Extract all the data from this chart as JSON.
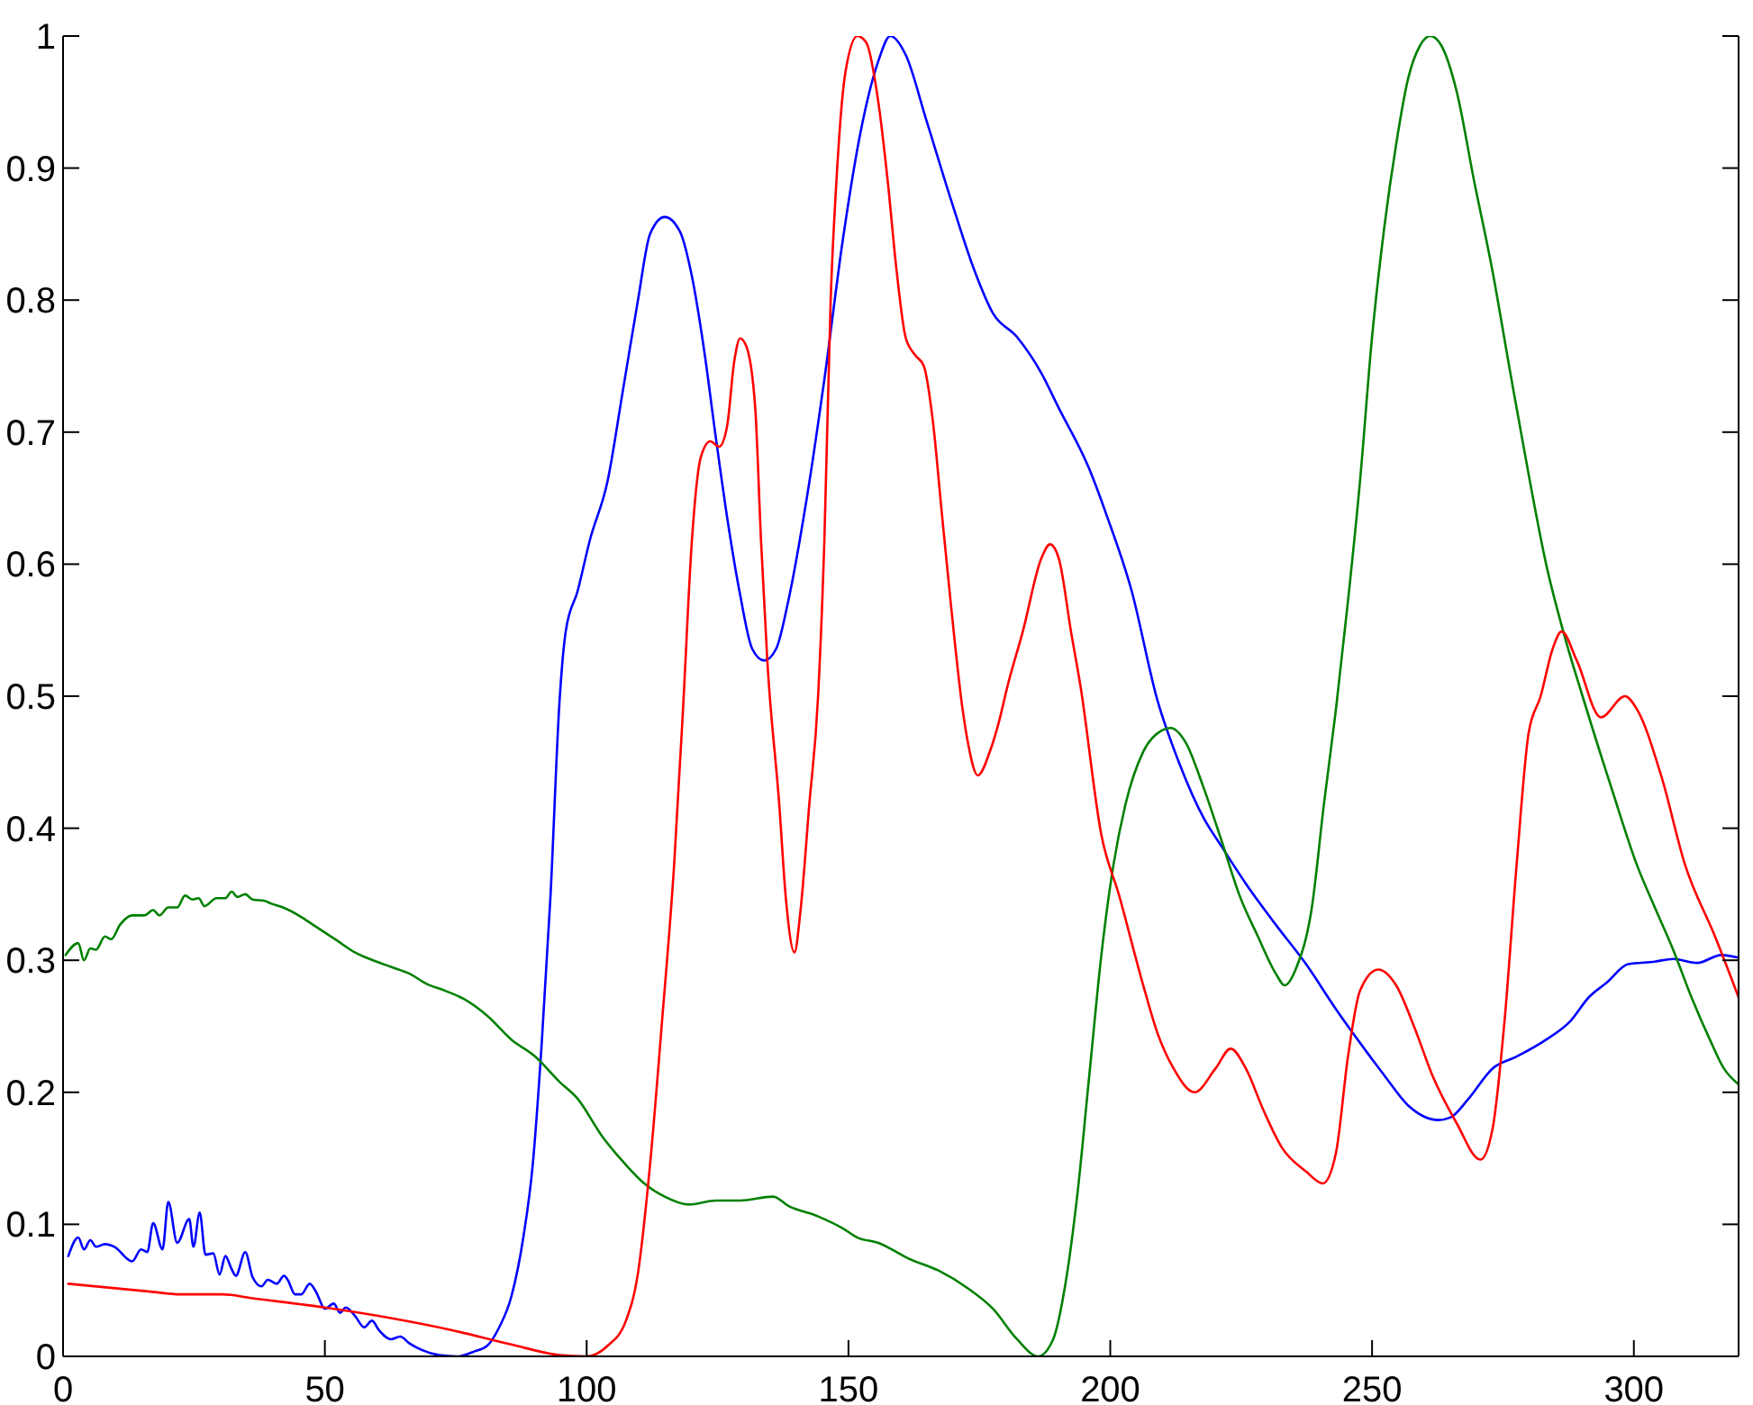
{
  "chart_data": {
    "type": "line",
    "xlim": [
      0,
      320
    ],
    "ylim": [
      0,
      1
    ],
    "xticks": [
      0,
      50,
      100,
      150,
      200,
      250,
      300
    ],
    "yticks": [
      0,
      0.1,
      0.2,
      0.3,
      0.4,
      0.5,
      0.6,
      0.7,
      0.8,
      0.9,
      1
    ],
    "series": [
      {
        "color": "#0000ff",
        "x": [
          1,
          2.9,
          4,
          5.2,
          6.3,
          8,
          9.8,
          13.2,
          14.9,
          16.1,
          17.2,
          19,
          20.1,
          21.8,
          24.1,
          24.9,
          26.1,
          27.2,
          28.7,
          29.9,
          31,
          32.2,
          33,
          34.8,
          36.2,
          37.9,
          39.1,
          40.8,
          42.2,
          42.9,
          44.3,
          45.5,
          47.1,
          48.3,
          50,
          51.7,
          52.9,
          54,
          55.7,
          57.5,
          59,
          60.3,
          62.6,
          64.4,
          66.1,
          68.4,
          71.8,
          75.3,
          78.7,
          81,
          83.3,
          85.6,
          87.9,
          89.7,
          91.4,
          93.1,
          94.8,
          96,
          98.3,
          100.6,
          104,
          106.9,
          109.8,
          112.1,
          114.9,
          117.8,
          120.1,
          122.4,
          124.7,
          127,
          129.3,
          131.6,
          133.9,
          136.2,
          138.5,
          142,
          145.4,
          148.9,
          152.3,
          155.7,
          158,
          160.9,
          164.9,
          169.5,
          174.1,
          177.6,
          182.2,
          186.8,
          190.2,
          196,
          199.4,
          204,
          209,
          213.2,
          217.8,
          221.3,
          225.9,
          231.6,
          237.4,
          243.1,
          248.9,
          252.3,
          256.9,
          262.7,
          265,
          268.4,
          273,
          277.6,
          283.3,
          287.9,
          291.4,
          294.8,
          298.9,
          304,
          307.5,
          312.1,
          316.7,
          320
        ],
        "values": [
          0.076,
          0.09,
          0.081,
          0.088,
          0.083,
          0.085,
          0.083,
          0.072,
          0.081,
          0.079,
          0.101,
          0.081,
          0.117,
          0.086,
          0.104,
          0.083,
          0.109,
          0.077,
          0.078,
          0.062,
          0.076,
          0.066,
          0.061,
          0.079,
          0.06,
          0.053,
          0.058,
          0.055,
          0.061,
          0.058,
          0.047,
          0.047,
          0.055,
          0.049,
          0.036,
          0.04,
          0.033,
          0.037,
          0.031,
          0.022,
          0.027,
          0.02,
          0.013,
          0.015,
          0.01,
          0.005,
          0.001,
          0,
          0.004,
          0.008,
          0.022,
          0.045,
          0.09,
          0.145,
          0.236,
          0.349,
          0.495,
          0.549,
          0.58,
          0.618,
          0.663,
          0.731,
          0.8,
          0.85,
          0.863,
          0.852,
          0.818,
          0.763,
          0.695,
          0.631,
          0.577,
          0.536,
          0.527,
          0.536,
          0.572,
          0.649,
          0.74,
          0.845,
          0.927,
          0.981,
          1,
          0.986,
          0.936,
          0.877,
          0.822,
          0.79,
          0.772,
          0.745,
          0.718,
          0.672,
          0.636,
          0.581,
          0.497,
          0.449,
          0.408,
          0.386,
          0.358,
          0.327,
          0.297,
          0.263,
          0.231,
          0.213,
          0.19,
          0.179,
          0.181,
          0.195,
          0.218,
          0.227,
          0.24,
          0.254,
          0.272,
          0.283,
          0.297,
          0.299,
          0.301,
          0.298,
          0.304,
          0.302
        ]
      },
      {
        "color": "#008000",
        "x": [
          0.5,
          2.9,
          4,
          5.2,
          6.3,
          8,
          9.2,
          10.9,
          13.2,
          15.5,
          17.2,
          18.4,
          20.1,
          21.8,
          23.3,
          24.7,
          25.9,
          27,
          29.3,
          31,
          32.2,
          33.3,
          34.8,
          36.2,
          38.5,
          39.7,
          42,
          45.4,
          47.7,
          50,
          52.3,
          55.7,
          59.2,
          62.6,
          66.1,
          69.5,
          72.9,
          76.4,
          81,
          85.6,
          90.2,
          94.8,
          98.3,
          102.9,
          107.5,
          111,
          114.9,
          119.5,
          124.7,
          129.3,
          135.6,
          138.5,
          144.2,
          148.9,
          151.7,
          155.7,
          161.5,
          167.2,
          173,
          177.6,
          182.2,
          186.2,
          189.1,
          191.4,
          193.7,
          196,
          198.3,
          200.6,
          202.9,
          206.3,
          209.8,
          211.5,
          214.4,
          217.8,
          221.3,
          224.7,
          228.2,
          231.6,
          233.3,
          235.6,
          238.5,
          240.8,
          243.1,
          245.4,
          247.7,
          250,
          252.3,
          254.6,
          256.9,
          259.2,
          261.1,
          263.2,
          266.1,
          269.5,
          273,
          276.4,
          279.9,
          283.3,
          286.8,
          290.2,
          296,
          300.6,
          304,
          307.5,
          311,
          314.5,
          317.2,
          320
        ],
        "values": [
          0.304,
          0.313,
          0.3,
          0.309,
          0.308,
          0.318,
          0.316,
          0.327,
          0.334,
          0.334,
          0.338,
          0.334,
          0.34,
          0.34,
          0.349,
          0.346,
          0.347,
          0.341,
          0.347,
          0.347,
          0.352,
          0.348,
          0.35,
          0.346,
          0.345,
          0.343,
          0.34,
          0.333,
          0.327,
          0.321,
          0.315,
          0.306,
          0.3,
          0.295,
          0.29,
          0.282,
          0.277,
          0.271,
          0.258,
          0.24,
          0.227,
          0.208,
          0.195,
          0.167,
          0.145,
          0.131,
          0.121,
          0.115,
          0.118,
          0.118,
          0.121,
          0.114,
          0.106,
          0.097,
          0.09,
          0.086,
          0.074,
          0.065,
          0.051,
          0.036,
          0.013,
          0,
          0.013,
          0.054,
          0.122,
          0.213,
          0.304,
          0.372,
          0.418,
          0.458,
          0.474,
          0.476,
          0.465,
          0.431,
          0.39,
          0.349,
          0.318,
          0.29,
          0.281,
          0.295,
          0.34,
          0.418,
          0.49,
          0.572,
          0.663,
          0.772,
          0.854,
          0.918,
          0.968,
          0.993,
          1,
          0.993,
          0.959,
          0.89,
          0.822,
          0.745,
          0.668,
          0.599,
          0.545,
          0.5,
          0.427,
          0.372,
          0.34,
          0.308,
          0.272,
          0.24,
          0.218,
          0.206
        ]
      },
      {
        "color": "#ff0000",
        "x": [
          1,
          16.7,
          22.4,
          30.4,
          36.2,
          50,
          62.6,
          74.1,
          85.6,
          94.8,
          100,
          104,
          107.5,
          109.8,
          112.1,
          114.4,
          116.7,
          118.4,
          120.1,
          121.8,
          123.6,
          125.3,
          126.8,
          128.2,
          129.3,
          130.5,
          132.2,
          133.3,
          134.5,
          136.8,
          138,
          139.7,
          140.8,
          142.5,
          144.2,
          145.4,
          146.6,
          147.7,
          149.4,
          151.7,
          153.4,
          155.7,
          157.5,
          159.2,
          160.9,
          162.6,
          164.4,
          166.1,
          167.8,
          169.5,
          171.8,
          172.9,
          174.7,
          177,
          178.7,
          180.4,
          183.3,
          186.8,
          188.5,
          190.2,
          192.5,
          194.3,
          198.3,
          201.7,
          206.3,
          209,
          212.1,
          216.1,
          220.1,
          223,
          225.9,
          229.3,
          232.8,
          237.4,
          240.6,
          243.1,
          245.4,
          247.7,
          251.2,
          254.6,
          258.1,
          261.5,
          266.1,
          270.7,
          273,
          275.3,
          277.6,
          279.9,
          282.2,
          284.5,
          286.2,
          289.1,
          293.7,
          298.3,
          300.6,
          305.2,
          309.8,
          315.5,
          320
        ],
        "values": [
          0.055,
          0.049,
          0.047,
          0.047,
          0.044,
          0.037,
          0.029,
          0.02,
          0.009,
          0.001,
          0,
          0.008,
          0.027,
          0.063,
          0.145,
          0.254,
          0.372,
          0.49,
          0.618,
          0.681,
          0.693,
          0.689,
          0.704,
          0.754,
          0.771,
          0.765,
          0.718,
          0.618,
          0.527,
          0.417,
          0.349,
          0.306,
          0.336,
          0.417,
          0.5,
          0.618,
          0.8,
          0.89,
          0.972,
          1,
          0.995,
          0.95,
          0.89,
          0.822,
          0.772,
          0.759,
          0.75,
          0.709,
          0.64,
          0.572,
          0.49,
          0.463,
          0.44,
          0.458,
          0.48,
          0.508,
          0.549,
          0.604,
          0.615,
          0.604,
          0.549,
          0.508,
          0.395,
          0.349,
          0.281,
          0.245,
          0.218,
          0.2,
          0.218,
          0.233,
          0.218,
          0.186,
          0.158,
          0.14,
          0.131,
          0.154,
          0.227,
          0.277,
          0.293,
          0.281,
          0.249,
          0.213,
          0.177,
          0.149,
          0.172,
          0.254,
          0.372,
          0.472,
          0.5,
          0.536,
          0.549,
          0.527,
          0.484,
          0.5,
          0.49,
          0.44,
          0.372,
          0.318,
          0.272
        ]
      }
    ]
  }
}
